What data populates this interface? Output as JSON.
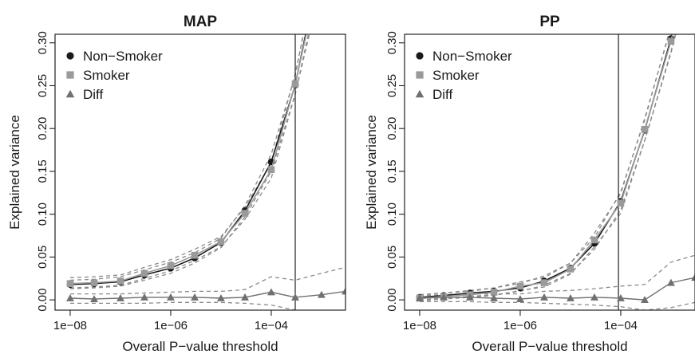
{
  "colors": {
    "non_smoker": "#1a1a1a",
    "smoker": "#9a9a9a",
    "diff": "#707070",
    "ci": "#8a8a8a",
    "axis": "#222222"
  },
  "chart_data": [
    {
      "type": "line",
      "title": "MAP",
      "xlabel": "Overall P−value threshold",
      "ylabel": "Explained variance",
      "x_scale": "log10",
      "xlim": [
        5e-09,
        0.003
      ],
      "ylim": [
        -0.012,
        0.31
      ],
      "xticks": [
        1e-08,
        1e-06,
        0.0001
      ],
      "xtick_labels": [
        "1e−08",
        "1e−06",
        "1e−04"
      ],
      "yticks": [
        0.0,
        0.05,
        0.1,
        0.15,
        0.2,
        0.25,
        0.3
      ],
      "ytick_labels": [
        "0.00",
        "0.05",
        "0.10",
        "0.15",
        "0.20",
        "0.25",
        "0.30"
      ],
      "vline": 0.0003,
      "legend": {
        "position": "top-left",
        "entries": [
          "Non−Smoker",
          "Smoker",
          "Diff"
        ]
      },
      "series": [
        {
          "name": "Non−Smoker",
          "marker": "circle",
          "x": [
            1e-08,
            3e-08,
            1e-07,
            3e-07,
            1e-06,
            3e-06,
            1e-05,
            3e-05,
            0.0001,
            0.0003,
            0.001
          ],
          "y": [
            0.018,
            0.019,
            0.021,
            0.029,
            0.037,
            0.049,
            0.067,
            0.104,
            0.161,
            0.251,
            0.4
          ],
          "band_low": [
            0.013,
            0.014,
            0.016,
            0.023,
            0.031,
            0.043,
            0.061,
            0.097,
            0.15,
            0.24,
            0.38
          ],
          "band_high": [
            0.023,
            0.024,
            0.027,
            0.035,
            0.044,
            0.055,
            0.072,
            0.11,
            0.17,
            0.262,
            0.42
          ],
          "markers_visible": 10
        },
        {
          "name": "Smoker",
          "marker": "square",
          "x": [
            1e-08,
            3e-08,
            1e-07,
            3e-07,
            1e-06,
            3e-06,
            1e-05,
            3e-05,
            0.0001,
            0.0003,
            0.001
          ],
          "y": [
            0.019,
            0.02,
            0.022,
            0.031,
            0.04,
            0.052,
            0.068,
            0.101,
            0.152,
            0.252,
            0.39
          ],
          "band_low": [
            0.014,
            0.015,
            0.017,
            0.025,
            0.034,
            0.046,
            0.062,
            0.094,
            0.142,
            0.24,
            0.37
          ],
          "band_high": [
            0.026,
            0.027,
            0.029,
            0.038,
            0.047,
            0.059,
            0.074,
            0.108,
            0.16,
            0.264,
            0.41
          ],
          "markers_visible": 10
        },
        {
          "name": "Diff",
          "marker": "triangle",
          "x": [
            1e-08,
            3e-08,
            1e-07,
            3e-07,
            1e-06,
            3e-06,
            1e-05,
            3e-05,
            0.0001,
            0.0003,
            0.001,
            0.003
          ],
          "y": [
            0.002,
            0.001,
            0.002,
            0.003,
            0.003,
            0.003,
            0.002,
            0.003,
            0.009,
            0.003,
            0.006,
            0.01
          ],
          "band_low": [
            -0.004,
            -0.004,
            -0.004,
            -0.004,
            -0.003,
            -0.003,
            -0.003,
            -0.004,
            -0.006,
            -0.012,
            -0.014,
            -0.016
          ],
          "band_high": [
            0.007,
            0.007,
            0.007,
            0.008,
            0.009,
            0.01,
            0.01,
            0.012,
            0.027,
            0.023,
            0.031,
            0.038
          ],
          "markers_visible": 12
        }
      ]
    },
    {
      "type": "line",
      "title": "PP",
      "xlabel": "Overall P−value threshold",
      "ylabel": "Explained variance",
      "x_scale": "log10",
      "xlim": [
        5e-09,
        0.003
      ],
      "ylim": [
        -0.012,
        0.31
      ],
      "xticks": [
        1e-08,
        1e-06,
        0.0001
      ],
      "xtick_labels": [
        "1e−08",
        "1e−06",
        "1e−04"
      ],
      "yticks": [
        0.0,
        0.05,
        0.1,
        0.15,
        0.2,
        0.25,
        0.3
      ],
      "ytick_labels": [
        "0.00",
        "0.05",
        "0.10",
        "0.15",
        "0.20",
        "0.25",
        "0.30"
      ],
      "vline": 9e-05,
      "legend": {
        "position": "top-left",
        "entries": [
          "Non−Smoker",
          "Smoker",
          "Diff"
        ]
      },
      "series": [
        {
          "name": "Non−Smoker",
          "marker": "circle",
          "x": [
            1e-08,
            3e-08,
            1e-07,
            3e-07,
            1e-06,
            3e-06,
            1e-05,
            3e-05,
            0.0001,
            0.0003,
            0.001,
            0.003
          ],
          "y": [
            0.003,
            0.005,
            0.008,
            0.01,
            0.014,
            0.022,
            0.037,
            0.066,
            0.115,
            0.198,
            0.305,
            0.42
          ],
          "band_low": [
            0.0,
            0.002,
            0.004,
            0.006,
            0.01,
            0.017,
            0.031,
            0.059,
            0.105,
            0.186,
            0.29,
            0.4
          ],
          "band_high": [
            0.006,
            0.008,
            0.011,
            0.014,
            0.019,
            0.028,
            0.043,
            0.073,
            0.126,
            0.21,
            0.32,
            0.44
          ],
          "markers_visible": 11
        },
        {
          "name": "Smoker",
          "marker": "square",
          "x": [
            1e-08,
            3e-08,
            1e-07,
            3e-07,
            1e-06,
            3e-06,
            1e-05,
            3e-05,
            0.0001,
            0.0003,
            0.001,
            0.003
          ],
          "y": [
            0.002,
            0.004,
            0.006,
            0.009,
            0.016,
            0.02,
            0.036,
            0.07,
            0.113,
            0.199,
            0.302,
            0.42
          ],
          "band_low": [
            -0.001,
            0.001,
            0.003,
            0.005,
            0.011,
            0.015,
            0.03,
            0.062,
            0.101,
            0.186,
            0.288,
            0.4
          ],
          "band_high": [
            0.006,
            0.008,
            0.01,
            0.014,
            0.021,
            0.026,
            0.043,
            0.078,
            0.124,
            0.212,
            0.318,
            0.44
          ],
          "markers_visible": 11
        },
        {
          "name": "Diff",
          "marker": "triangle",
          "x": [
            1e-08,
            3e-08,
            1e-07,
            3e-07,
            1e-06,
            3e-06,
            1e-05,
            3e-05,
            0.0001,
            0.0003,
            0.001,
            0.003
          ],
          "y": [
            0.002,
            0.003,
            0.003,
            0.002,
            0.001,
            0.003,
            0.002,
            0.003,
            0.002,
            0.0,
            0.02,
            0.026
          ],
          "band_low": [
            -0.002,
            -0.002,
            -0.002,
            -0.003,
            -0.003,
            -0.004,
            -0.005,
            -0.006,
            -0.008,
            -0.012,
            -0.009,
            -0.003
          ],
          "band_high": [
            0.005,
            0.006,
            0.007,
            0.007,
            0.007,
            0.01,
            0.011,
            0.013,
            0.016,
            0.018,
            0.044,
            0.052
          ],
          "markers_visible": 12
        }
      ]
    }
  ]
}
